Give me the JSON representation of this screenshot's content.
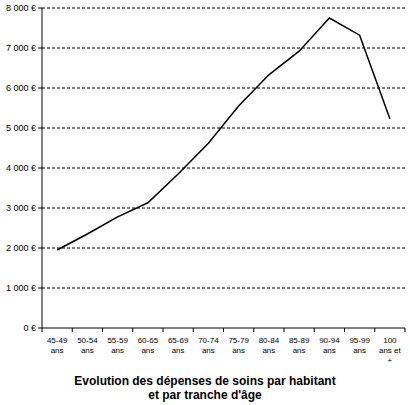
{
  "chart_data": {
    "type": "line",
    "title": "Evolution des dépenses de soins par habitant et par tranche d'âge",
    "categories": [
      "45-49 ans",
      "50-54 ans",
      "55-59 ans",
      "60-65 ans",
      "65-69 ans",
      "70-74 ans",
      "75-79 ans",
      "80-84 ans",
      "85-89 ans",
      "90-94 ans",
      "95-99 ans",
      "100 ans et +"
    ],
    "values": [
      1950,
      2350,
      2780,
      3130,
      3850,
      4620,
      5550,
      6330,
      6920,
      7750,
      7320,
      5230
    ],
    "color": "#000000",
    "ylim": [
      0,
      8000
    ],
    "yticks": [
      {
        "value": 0,
        "label": "0 €"
      },
      {
        "value": 1000,
        "label": "1 000 €"
      },
      {
        "value": 2000,
        "label": "2 000 €"
      },
      {
        "value": 3000,
        "label": "3 000 €"
      },
      {
        "value": 4000,
        "label": "4 000 €"
      },
      {
        "value": 5000,
        "label": "5 000 €"
      },
      {
        "value": 6000,
        "label": "6 000 €"
      },
      {
        "value": 7000,
        "label": "7 000 €"
      },
      {
        "value": 8000,
        "label": "8 000 €"
      }
    ],
    "grid": true
  }
}
